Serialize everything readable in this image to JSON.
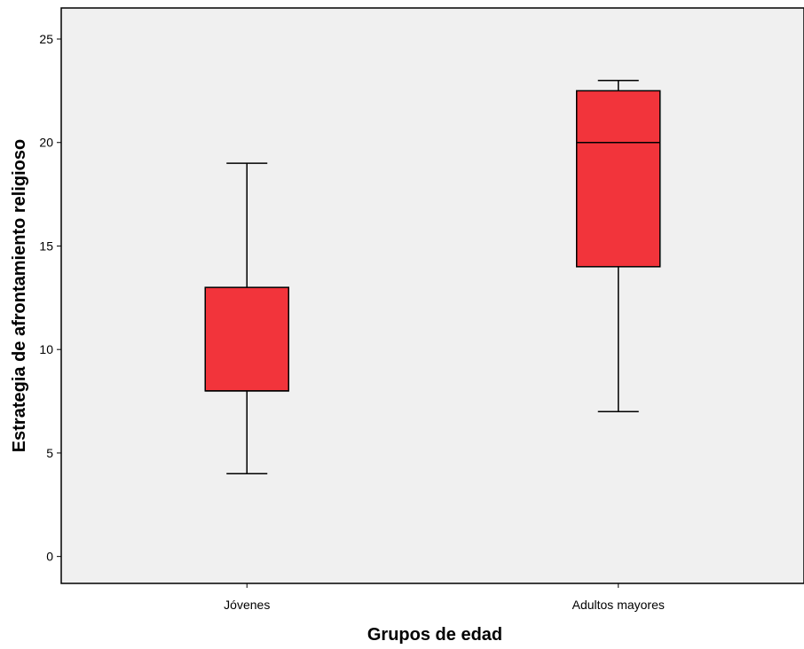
{
  "chart_data": {
    "type": "boxplot",
    "title": "",
    "xlabel": "Grupos de edad",
    "ylabel": "Estrategia de afrontamiento religioso",
    "ylim": [
      -1.3,
      26.5
    ],
    "yticks": [
      0,
      5,
      10,
      15,
      20,
      25
    ],
    "grid": false,
    "legend": "none",
    "categories": [
      "Jóvenes",
      "Adultos mayores"
    ],
    "boxes": [
      {
        "category": "Jóvenes",
        "min": 4,
        "q1": 8,
        "median": 8,
        "q3": 13,
        "max": 19
      },
      {
        "category": "Adultos mayores",
        "min": 7,
        "q1": 14,
        "median": 20,
        "q3": 22.5,
        "max": 23
      }
    ],
    "colors": {
      "box_fill": "#f2343b",
      "plot_background": "#f0f0f0",
      "stroke": "#000000"
    }
  }
}
